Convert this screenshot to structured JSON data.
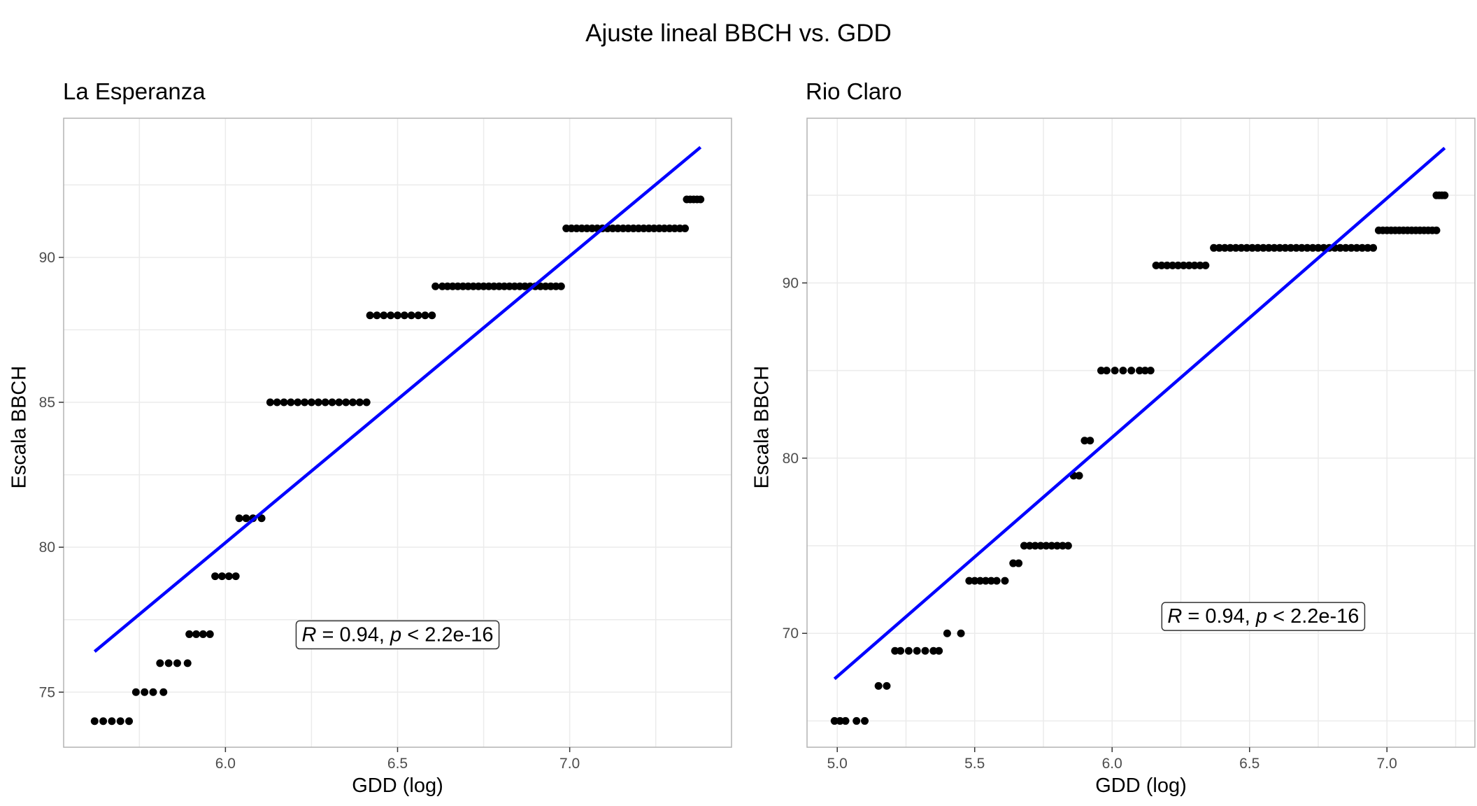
{
  "title": "Ajuste lineal BBCH vs. GDD",
  "colors": {
    "fit_line": "#0000ff",
    "points": "#000000",
    "grid": "#ebebeb",
    "border": "#b3b3b3"
  },
  "chart_data": [
    {
      "type": "scatter",
      "title": "La Esperanza",
      "xlabel": "GDD (log)",
      "ylabel": "Escala BBCH",
      "xlim": [
        5.53,
        7.47
      ],
      "ylim": [
        73.1,
        94.8
      ],
      "xticks": [
        6.0,
        6.5,
        7.0
      ],
      "yticks": [
        75,
        80,
        85,
        90
      ],
      "grid": true,
      "annotation": {
        "r_label": "R",
        "r_text": " = 0.94, ",
        "p_label": "p",
        "p_text": " < 2.2e-16",
        "x": 6.5,
        "y": 77
      },
      "fit_line": {
        "x": [
          5.62,
          7.38
        ],
        "y": [
          76.4,
          93.8
        ]
      },
      "points": [
        {
          "y": 74,
          "x": [
            5.62,
            5.645,
            5.67,
            5.695,
            5.72
          ]
        },
        {
          "y": 75,
          "x": [
            5.74,
            5.765,
            5.79,
            5.82
          ]
        },
        {
          "y": 76,
          "x": [
            5.81,
            5.835,
            5.86,
            5.89
          ]
        },
        {
          "y": 77,
          "x": [
            5.895,
            5.915,
            5.935,
            5.955
          ]
        },
        {
          "y": 79,
          "x": [
            5.97,
            5.99,
            6.01,
            6.03
          ]
        },
        {
          "y": 81,
          "x": [
            6.04,
            6.06,
            6.08,
            6.105
          ]
        },
        {
          "y": 85,
          "x": [
            6.13,
            6.15,
            6.17,
            6.19,
            6.21,
            6.23,
            6.25,
            6.27,
            6.29,
            6.31,
            6.33,
            6.35,
            6.37,
            6.39,
            6.41
          ]
        },
        {
          "y": 88,
          "x": [
            6.42,
            6.44,
            6.46,
            6.48,
            6.5,
            6.52,
            6.54,
            6.56,
            6.58,
            6.6
          ]
        },
        {
          "y": 89,
          "x": [
            6.61,
            6.63,
            6.645,
            6.66,
            6.675,
            6.69,
            6.705,
            6.72,
            6.735,
            6.75,
            6.765,
            6.78,
            6.795,
            6.81,
            6.825,
            6.84,
            6.855,
            6.87,
            6.885,
            6.9,
            6.915,
            6.93,
            6.945,
            6.96,
            6.975
          ]
        },
        {
          "y": 91,
          "x": [
            6.99,
            7.005,
            7.02,
            7.035,
            7.05,
            7.065,
            7.08,
            7.095,
            7.11,
            7.125,
            7.14,
            7.155,
            7.17,
            7.185,
            7.2,
            7.215,
            7.23,
            7.245,
            7.26,
            7.275,
            7.29,
            7.305,
            7.32,
            7.335
          ]
        },
        {
          "y": 92,
          "x": [
            7.34,
            7.35,
            7.36,
            7.37,
            7.38
          ]
        }
      ]
    },
    {
      "type": "scatter",
      "title": "Rio Claro",
      "xlabel": "GDD (log)",
      "ylabel": "Escala BBCH",
      "xlim": [
        4.89,
        7.32
      ],
      "ylim": [
        63.5,
        99.4
      ],
      "xticks": [
        5.0,
        5.5,
        6.0,
        6.5,
        7.0
      ],
      "yticks": [
        70,
        80,
        90
      ],
      "grid": true,
      "annotation": {
        "r_label": "R",
        "r_text": " = 0.94, ",
        "p_label": "p",
        "p_text": " < 2.2e-16",
        "x": 6.55,
        "y": 71
      },
      "fit_line": {
        "x": [
          4.99,
          7.21
        ],
        "y": [
          67.4,
          97.7
        ]
      },
      "points": [
        {
          "y": 65,
          "x": [
            4.99,
            5.01,
            5.03,
            5.07,
            5.1
          ]
        },
        {
          "y": 67,
          "x": [
            5.15,
            5.18
          ]
        },
        {
          "y": 69,
          "x": [
            5.21,
            5.23,
            5.26,
            5.29,
            5.32,
            5.35,
            5.37
          ]
        },
        {
          "y": 70,
          "x": [
            5.4,
            5.45
          ]
        },
        {
          "y": 73,
          "x": [
            5.48,
            5.5,
            5.52,
            5.54,
            5.56,
            5.58,
            5.61
          ]
        },
        {
          "y": 74,
          "x": [
            5.64,
            5.66
          ]
        },
        {
          "y": 75,
          "x": [
            5.68,
            5.7,
            5.72,
            5.74,
            5.76,
            5.78,
            5.8,
            5.82,
            5.84
          ]
        },
        {
          "y": 79,
          "x": [
            5.86,
            5.88
          ]
        },
        {
          "y": 81,
          "x": [
            5.9,
            5.92
          ]
        },
        {
          "y": 85,
          "x": [
            5.96,
            5.98,
            6.01,
            6.04,
            6.07,
            6.1,
            6.12,
            6.14
          ]
        },
        {
          "y": 91,
          "x": [
            6.16,
            6.18,
            6.2,
            6.22,
            6.24,
            6.26,
            6.28,
            6.3,
            6.32,
            6.34
          ]
        },
        {
          "y": 92,
          "x": [
            6.37,
            6.39,
            6.41,
            6.43,
            6.45,
            6.47,
            6.49,
            6.51,
            6.53,
            6.55,
            6.57,
            6.59,
            6.61,
            6.63,
            6.65,
            6.67,
            6.69,
            6.71,
            6.73,
            6.75,
            6.77,
            6.79,
            6.81,
            6.83,
            6.85,
            6.87,
            6.89,
            6.91,
            6.93,
            6.95
          ]
        },
        {
          "y": 93,
          "x": [
            6.97,
            6.985,
            7.0,
            7.015,
            7.03,
            7.045,
            7.06,
            7.075,
            7.09,
            7.105,
            7.12,
            7.135,
            7.15,
            7.165,
            7.18
          ]
        },
        {
          "y": 95,
          "x": [
            7.18,
            7.19,
            7.2,
            7.21
          ]
        }
      ]
    }
  ]
}
